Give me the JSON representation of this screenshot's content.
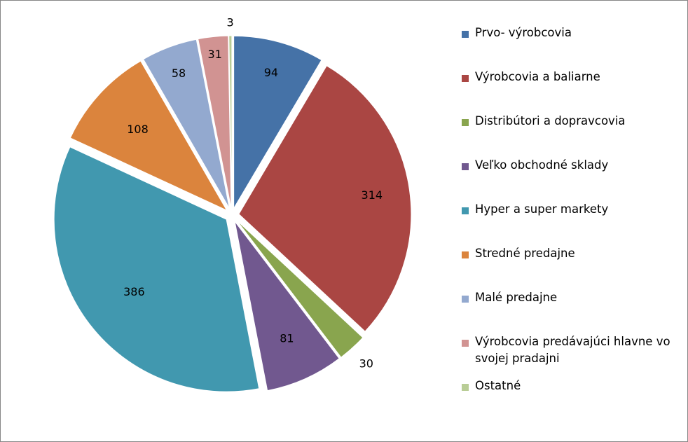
{
  "chart_data": {
    "type": "pie",
    "exploded": true,
    "legend_position": "right",
    "categories": [
      "Prvo- výrobcovia",
      "Výrobcovia a baliarne",
      "Distribútori a dopravcovia",
      "Veľko obchodné sklady",
      "Hyper a super markety",
      "Stredné predajne",
      "Malé predajne",
      "Výrobcovia predávajúci hlavne vo svojej pradajni",
      "Ostatné"
    ],
    "values": [
      94,
      314,
      30,
      81,
      386,
      108,
      58,
      31,
      3
    ],
    "colors": [
      "#4572A7",
      "#AA4643",
      "#89A54E",
      "#71588F",
      "#4198AF",
      "#DB843D",
      "#93A9CF",
      "#D19392",
      "#B9CD96"
    ]
  }
}
